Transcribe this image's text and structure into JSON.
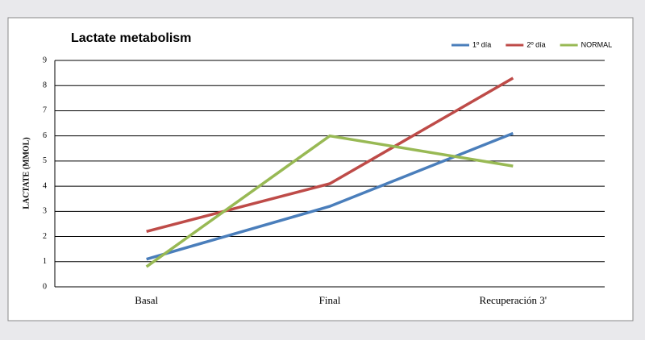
{
  "chart_data": {
    "type": "line",
    "title": "Lactate metabolism",
    "y_label": "LACTATE (MMOL)",
    "categories": [
      "Basal",
      "Final",
      "Recuperación 3'"
    ],
    "series": [
      {
        "name": "1º día",
        "color": "#4a7ebb",
        "values": [
          1.1,
          3.2,
          6.1
        ]
      },
      {
        "name": "2º día",
        "color": "#be4b48",
        "values": [
          2.2,
          4.1,
          8.3
        ]
      },
      {
        "name": "NORMAL",
        "color": "#98b954",
        "values": [
          0.8,
          6.0,
          4.8
        ]
      }
    ],
    "ylim": [
      0,
      9
    ],
    "yticks": [
      0,
      1,
      2,
      3,
      4,
      5,
      6,
      7,
      8,
      9
    ],
    "grid": true,
    "legend": "top-right"
  }
}
